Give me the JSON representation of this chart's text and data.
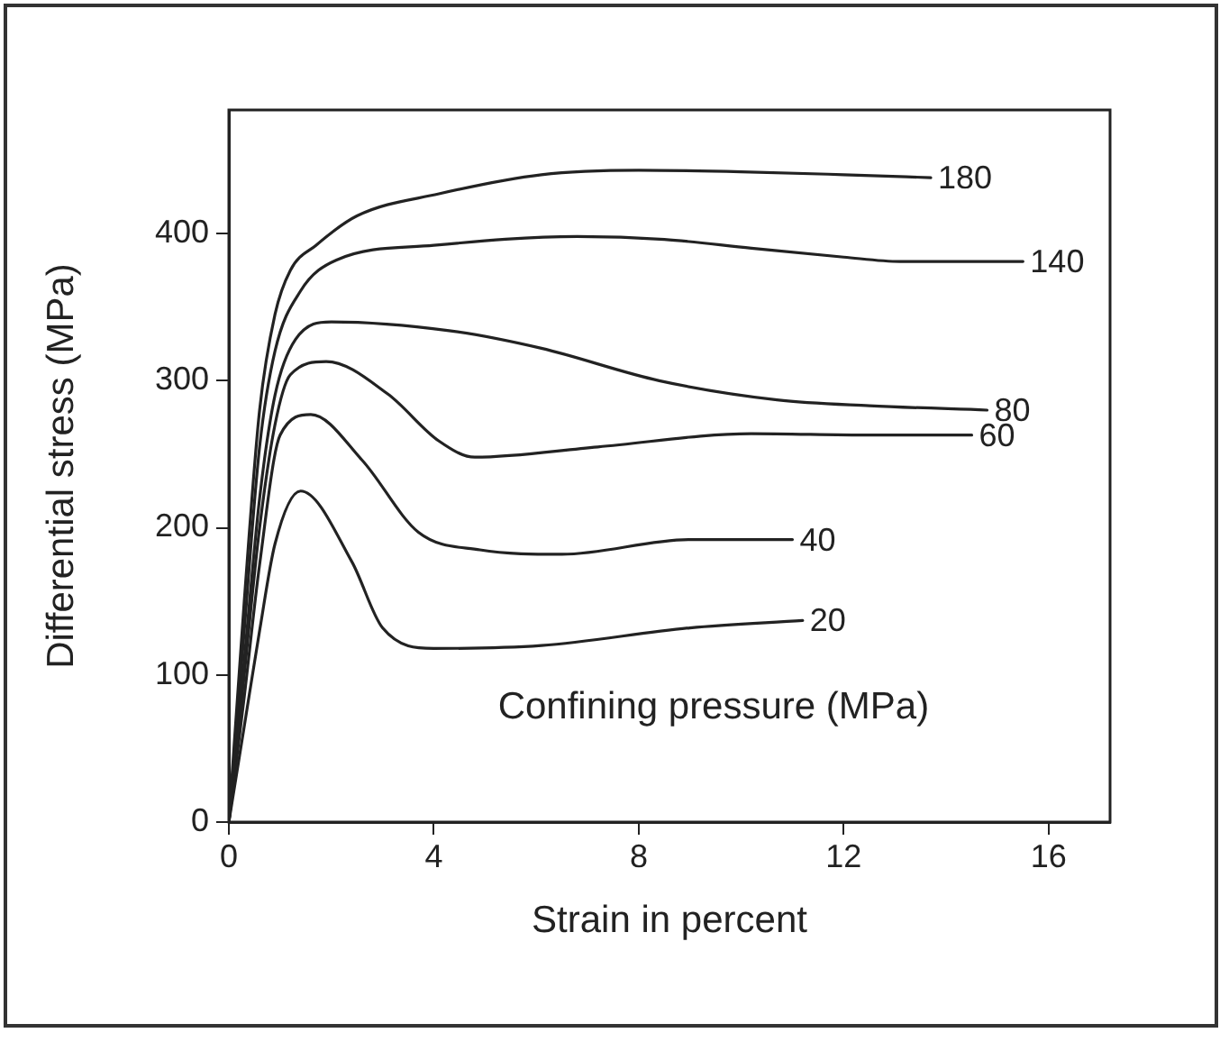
{
  "chart_data": {
    "type": "line",
    "xlabel": "Strain in percent",
    "ylabel": "Differential stress (MPa)",
    "legend_title": "Confining pressure (MPa)",
    "xlim": [
      0,
      17.2
    ],
    "ylim": [
      0,
      484
    ],
    "xticks": [
      0,
      4,
      8,
      12,
      16
    ],
    "yticks": [
      0,
      100,
      200,
      300,
      400
    ],
    "grid": false,
    "legend": false,
    "marker": "none",
    "line_style": "solid",
    "series": [
      {
        "name": "180",
        "color": "#222222",
        "x": [
          0,
          0.3,
          0.6,
          0.9,
          1.2,
          1.7,
          2.5,
          4.1,
          6.1,
          8,
          10,
          12,
          13.7
        ],
        "values": [
          0,
          150,
          280,
          345,
          375,
          392,
          412,
          427,
          440,
          443,
          442,
          440,
          438
        ]
      },
      {
        "name": "140",
        "color": "#222222",
        "x": [
          0,
          0.3,
          0.6,
          0.9,
          1.4,
          2.1,
          4,
          6.8,
          8.5,
          10.2,
          12,
          13.1,
          15.5
        ],
        "values": [
          0,
          130,
          255,
          320,
          361,
          382,
          392,
          398,
          396,
          390,
          384,
          381,
          381
        ]
      },
      {
        "name": "80",
        "color": "#222222",
        "x": [
          0,
          0.3,
          0.6,
          0.9,
          1.3,
          2,
          4.3,
          6.1,
          8.4,
          10.7,
          12.5,
          14.8
        ],
        "values": [
          0,
          110,
          220,
          290,
          328,
          340,
          334,
          322,
          300,
          287,
          283,
          280
        ]
      },
      {
        "name": "60",
        "color": "#222222",
        "x": [
          0,
          0.3,
          0.6,
          0.9,
          1.2,
          1.9,
          3.1,
          4.1,
          4.8,
          7.2,
          10.2,
          12.5,
          14.5
        ],
        "values": [
          0,
          100,
          200,
          270,
          304,
          313,
          291,
          259,
          248,
          255,
          264,
          263,
          263
        ]
      },
      {
        "name": "40",
        "color": "#222222",
        "x": [
          0,
          0.3,
          0.6,
          1,
          1.6,
          2.6,
          3.7,
          4.9,
          6.5,
          9,
          11
        ],
        "values": [
          0,
          85,
          175,
          263,
          277,
          246,
          197,
          185,
          182,
          192,
          192
        ]
      },
      {
        "name": "20",
        "color": "#222222",
        "x": [
          0,
          0.3,
          0.6,
          0.9,
          1.4,
          2.4,
          3,
          4,
          6.1,
          9,
          11.2
        ],
        "values": [
          0,
          65,
          130,
          189,
          225,
          177,
          132,
          118,
          120,
          132,
          137
        ]
      }
    ]
  }
}
